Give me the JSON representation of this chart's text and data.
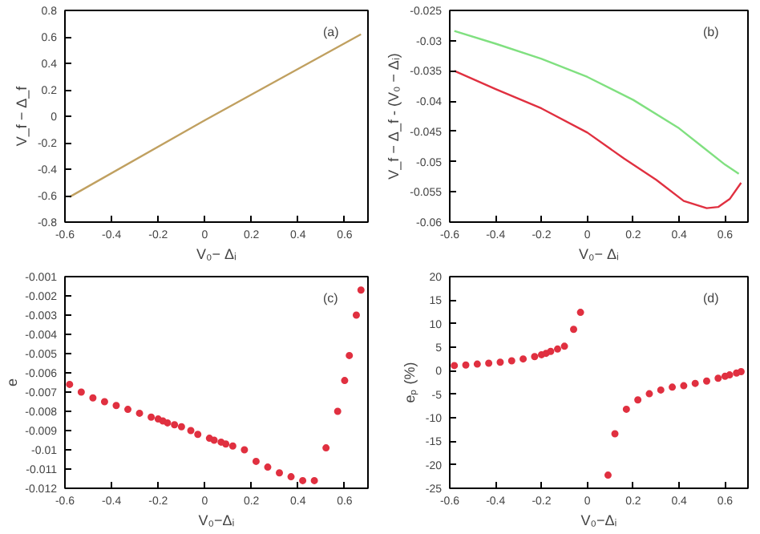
{
  "chart_data": [
    {
      "type": "line",
      "xlabel": "V₀− Δᵢ",
      "ylabel": "V_f − Δ_f",
      "annotations": [
        "(a)"
      ],
      "xlim": [
        -0.6,
        0.7
      ],
      "ylim": [
        -0.8,
        0.8
      ],
      "xticks": [
        -0.6,
        -0.4,
        -0.2,
        0,
        0.2,
        0.4,
        0.6
      ],
      "yticks": [
        -0.8,
        -0.6,
        -0.4,
        -0.2,
        0,
        0.2,
        0.4,
        0.6,
        0.8
      ],
      "grid": false,
      "series": [
        {
          "color": "#c0a060",
          "x": [
            -0.58,
            0,
            0.67
          ],
          "values": [
            -0.61,
            -0.03,
            0.62
          ]
        }
      ]
    },
    {
      "type": "line",
      "xlabel": "V₀− Δᵢ",
      "ylabel": "V_f − Δ_f - (V₀ − Δᵢ)",
      "annotations": [
        "(b)"
      ],
      "xlim": [
        -0.6,
        0.7
      ],
      "ylim": [
        -0.06,
        -0.025
      ],
      "xticks": [
        -0.6,
        -0.4,
        -0.2,
        0,
        0.2,
        0.4,
        0.6
      ],
      "yticks": [
        -0.06,
        -0.055,
        -0.05,
        -0.045,
        -0.04,
        -0.035,
        -0.03,
        -0.025
      ],
      "grid": false,
      "series": [
        {
          "color": "#80e080",
          "x": [
            -0.58,
            -0.4,
            -0.2,
            0,
            0.2,
            0.4,
            0.5,
            0.6,
            0.66
          ],
          "values": [
            -0.0284,
            -0.0305,
            -0.033,
            -0.036,
            -0.0398,
            -0.0445,
            -0.0475,
            -0.0505,
            -0.052
          ]
        },
        {
          "color": "#e03040",
          "x": [
            -0.58,
            -0.4,
            -0.2,
            0,
            0.16,
            0.3,
            0.42,
            0.52,
            0.57,
            0.62,
            0.67
          ],
          "values": [
            -0.035,
            -0.038,
            -0.0412,
            -0.0452,
            -0.0495,
            -0.053,
            -0.0565,
            -0.0577,
            -0.0575,
            -0.0562,
            -0.0535
          ]
        }
      ]
    },
    {
      "type": "scatter",
      "xlabel": "V₀−Δᵢ",
      "ylabel": "e",
      "annotations": [
        "(c)"
      ],
      "xlim": [
        -0.6,
        0.7
      ],
      "ylim": [
        -0.012,
        -0.001
      ],
      "xticks": [
        -0.6,
        -0.4,
        -0.2,
        0,
        0.2,
        0.4,
        0.6
      ],
      "yticks": [
        -0.012,
        -0.011,
        -0.01,
        -0.009,
        -0.008,
        -0.007,
        -0.006,
        -0.005,
        -0.004,
        -0.003,
        -0.002,
        -0.001
      ],
      "grid": false,
      "marker": "circle",
      "series": [
        {
          "color": "#e03040",
          "x": [
            -0.58,
            -0.53,
            -0.48,
            -0.43,
            -0.38,
            -0.33,
            -0.28,
            -0.23,
            -0.2,
            -0.18,
            -0.16,
            -0.13,
            -0.1,
            -0.06,
            -0.03,
            0.02,
            0.04,
            0.07,
            0.09,
            0.12,
            0.17,
            0.22,
            0.27,
            0.32,
            0.37,
            0.42,
            0.47,
            0.52,
            0.57,
            0.6,
            0.62,
            0.65,
            0.67
          ],
          "values": [
            -0.0066,
            -0.007,
            -0.0073,
            -0.0075,
            -0.0077,
            -0.0079,
            -0.0081,
            -0.0083,
            -0.0084,
            -0.0085,
            -0.0086,
            -0.0087,
            -0.0088,
            -0.009,
            -0.0092,
            -0.0094,
            -0.0095,
            -0.0096,
            -0.0097,
            -0.0098,
            -0.01,
            -0.0106,
            -0.0109,
            -0.0112,
            -0.0114,
            -0.0116,
            -0.0116,
            -0.0099,
            -0.008,
            -0.0064,
            -0.0051,
            -0.003,
            -0.0017
          ]
        }
      ]
    },
    {
      "type": "scatter",
      "xlabel": "V₀−Δᵢ",
      "ylabel": "eₚ (%)",
      "annotations": [
        "(d)"
      ],
      "xlim": [
        -0.6,
        0.7
      ],
      "ylim": [
        -25,
        20
      ],
      "xticks": [
        -0.6,
        -0.4,
        -0.2,
        0,
        0.2,
        0.4,
        0.6
      ],
      "yticks": [
        -25,
        -20,
        -15,
        -10,
        -5,
        0,
        5,
        10,
        15,
        20
      ],
      "grid": false,
      "marker": "circle",
      "series": [
        {
          "color": "#e03040",
          "x": [
            -0.58,
            -0.53,
            -0.48,
            -0.43,
            -0.38,
            -0.33,
            -0.28,
            -0.23,
            -0.2,
            -0.18,
            -0.16,
            -0.13,
            -0.1,
            -0.06,
            -0.03,
            0.09,
            0.12,
            0.17,
            0.22,
            0.27,
            0.32,
            0.37,
            0.42,
            0.47,
            0.52,
            0.57,
            0.6,
            0.62,
            0.65,
            0.67
          ],
          "values": [
            1.1,
            1.2,
            1.4,
            1.6,
            1.8,
            2.1,
            2.5,
            3.0,
            3.4,
            3.7,
            4.1,
            4.6,
            5.2,
            8.8,
            12.4,
            -22.2,
            -13.4,
            -8.2,
            -6.2,
            -4.9,
            -4.1,
            -3.5,
            -3.2,
            -2.7,
            -2.2,
            -1.6,
            -1.2,
            -0.9,
            -0.5,
            -0.2
          ]
        }
      ]
    }
  ]
}
